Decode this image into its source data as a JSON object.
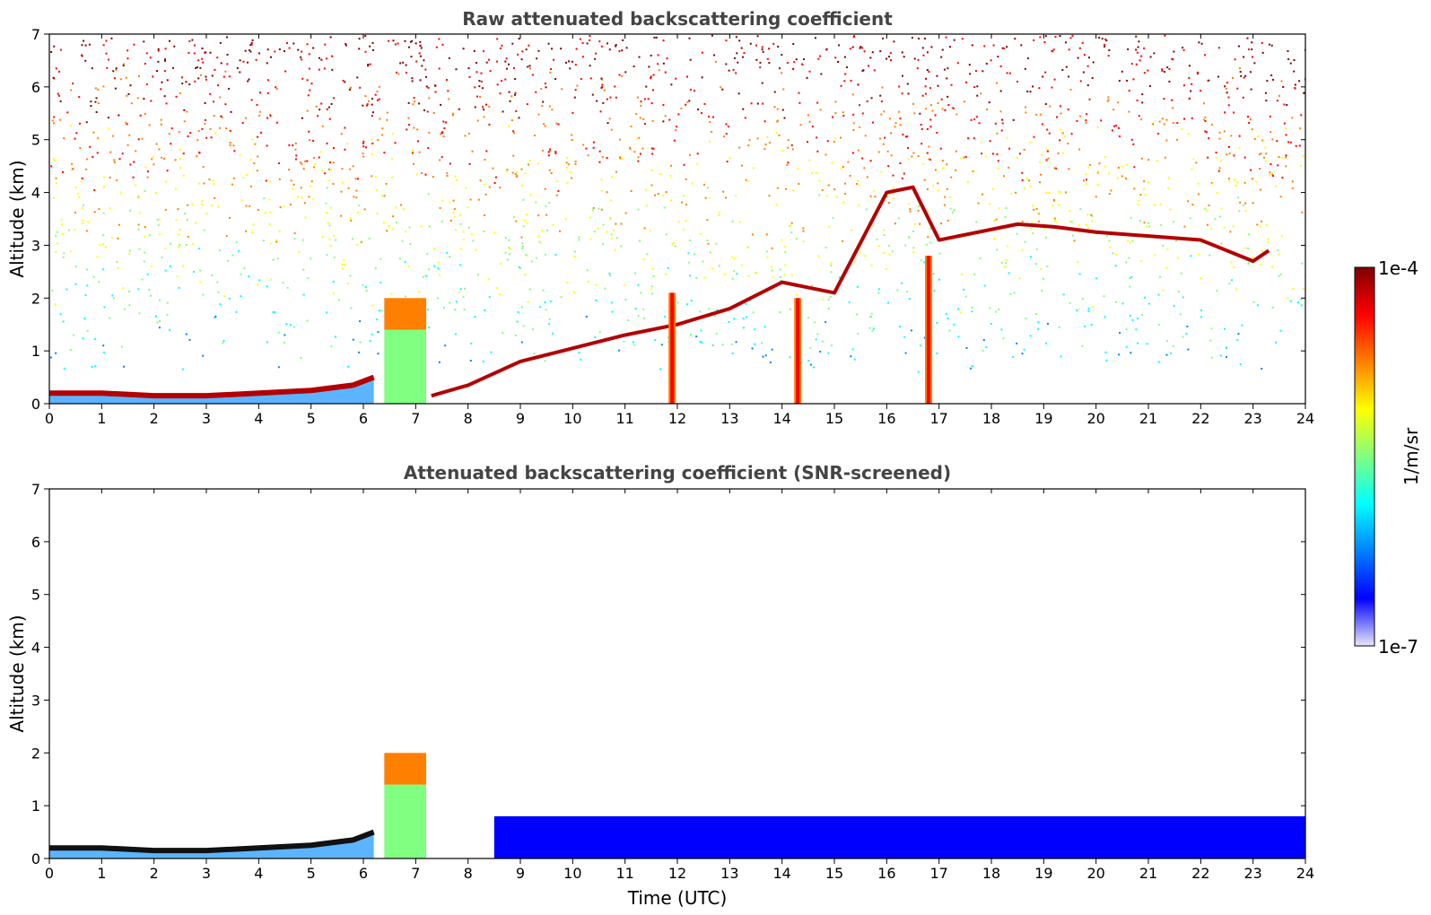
{
  "chart_data": [
    {
      "type": "heatmap",
      "title": "Raw attenuated backscattering coefficient",
      "xlabel": "",
      "ylabel": "Altitude (km)",
      "xlim": [
        0,
        24
      ],
      "ylim": [
        0,
        7
      ],
      "x_ticks": [
        "0",
        "1",
        "2",
        "3",
        "4",
        "5",
        "6",
        "7",
        "8",
        "9",
        "10",
        "11",
        "12",
        "13",
        "14",
        "15",
        "16",
        "17",
        "18",
        "19",
        "20",
        "21",
        "22",
        "23",
        "24"
      ],
      "y_ticks": [
        "0",
        "1",
        "2",
        "3",
        "4",
        "5",
        "6",
        "7"
      ],
      "features": [
        {
          "feature": "boundary layer top",
          "points": [
            [
              0,
              0.2
            ],
            [
              1,
              0.2
            ],
            [
              2,
              0.15
            ],
            [
              3,
              0.15
            ],
            [
              4,
              0.2
            ],
            [
              5,
              0.25
            ],
            [
              5.8,
              0.35
            ],
            [
              6.2,
              0.5
            ]
          ]
        },
        {
          "feature": "aerosol/cloud plume",
          "x_range": [
            6.4,
            7.2
          ],
          "y_range": [
            0,
            2.0
          ]
        },
        {
          "feature": "cloud layer",
          "points": [
            [
              7.3,
              0.15
            ],
            [
              8,
              0.35
            ],
            [
              9,
              0.8
            ],
            [
              10,
              1.05
            ],
            [
              11,
              1.3
            ],
            [
              12,
              1.5
            ],
            [
              13,
              1.8
            ],
            [
              14,
              2.3
            ],
            [
              15,
              2.1
            ],
            [
              16,
              4.0
            ],
            [
              16.5,
              4.1
            ],
            [
              17,
              3.1
            ],
            [
              18.5,
              3.4
            ],
            [
              19.2,
              3.35
            ],
            [
              20,
              3.25
            ],
            [
              22,
              3.1
            ],
            [
              23,
              2.7
            ],
            [
              23.3,
              2.9
            ]
          ]
        },
        {
          "feature": "precipitation streak",
          "x": 11.9,
          "y_range": [
            0,
            2.1
          ]
        },
        {
          "feature": "precipitation streak",
          "x": 14.3,
          "y_range": [
            0,
            2.0
          ]
        },
        {
          "feature": "precipitation streak",
          "x": 16.8,
          "y_range": [
            0,
            2.8
          ]
        }
      ],
      "noise_region": {
        "y_range": [
          1,
          7
        ],
        "description_level": "high"
      }
    },
    {
      "type": "heatmap",
      "title": "Attenuated backscattering coefficient (SNR-screened)",
      "xlabel": "Time (UTC)",
      "ylabel": "Altitude (km)",
      "xlim": [
        0,
        24
      ],
      "ylim": [
        0,
        7
      ],
      "x_ticks": [
        "0",
        "1",
        "2",
        "3",
        "4",
        "5",
        "6",
        "7",
        "8",
        "9",
        "10",
        "11",
        "12",
        "13",
        "14",
        "15",
        "16",
        "17",
        "18",
        "19",
        "20",
        "21",
        "22",
        "23",
        "24"
      ],
      "y_ticks": [
        "0",
        "1",
        "2",
        "3",
        "4",
        "5",
        "6",
        "7"
      ],
      "features": [
        {
          "feature": "boundary layer top",
          "points": [
            [
              0,
              0.2
            ],
            [
              1,
              0.2
            ],
            [
              2,
              0.15
            ],
            [
              3,
              0.15
            ],
            [
              4,
              0.2
            ],
            [
              5,
              0.25
            ],
            [
              5.8,
              0.35
            ],
            [
              6.2,
              0.5
            ]
          ]
        },
        {
          "feature": "aerosol/cloud plume",
          "x_range": [
            6.4,
            7.2
          ],
          "y_range": [
            0,
            2.0
          ]
        },
        {
          "feature": "screened low layer",
          "x_range": [
            8.5,
            24
          ],
          "y_range": [
            0,
            0.8
          ]
        }
      ]
    }
  ],
  "colorbar": {
    "label": "1/m/sr",
    "min_label": "1e-7",
    "max_label": "1e-4",
    "scale": "log",
    "colors": [
      "#e6e6fa",
      "#0000ff",
      "#0080ff",
      "#00ffff",
      "#80ff80",
      "#ffff00",
      "#ff8000",
      "#ff0000",
      "#800000"
    ]
  }
}
